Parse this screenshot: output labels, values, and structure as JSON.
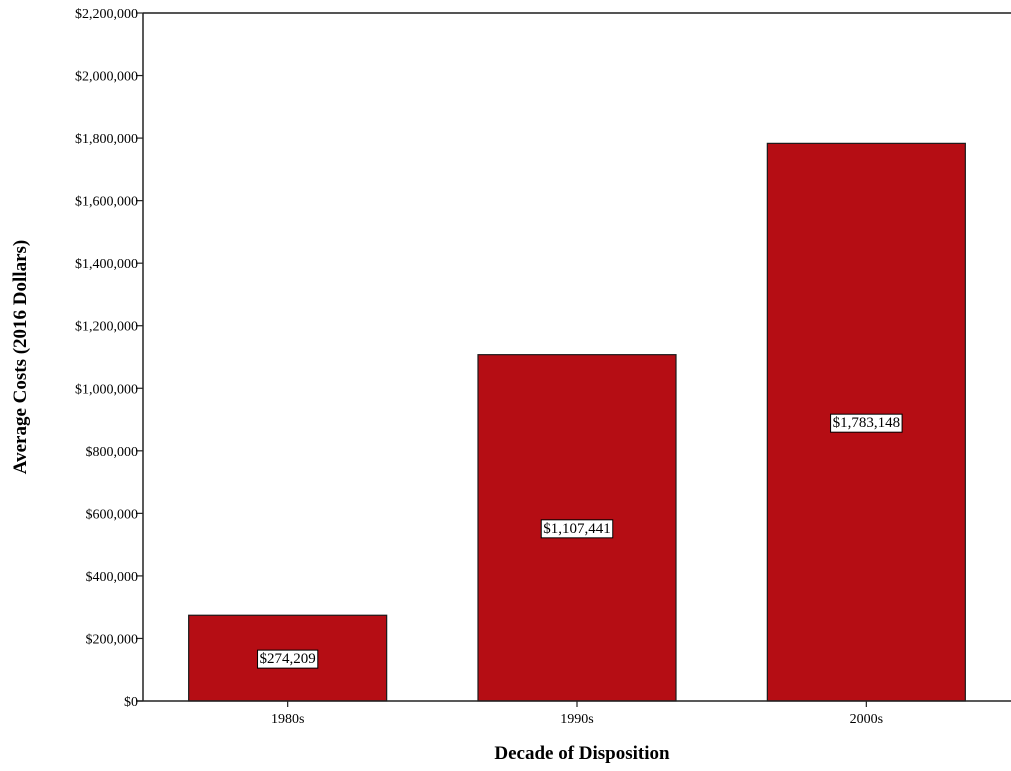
{
  "chart_data": {
    "type": "bar",
    "categories": [
      "1980s",
      "1990s",
      "2000s"
    ],
    "values": [
      274209,
      1107441,
      1783148
    ],
    "data_labels": [
      "$274,209",
      "$1,107,441",
      "$1,783,148"
    ],
    "xlabel": "Decade of Disposition",
    "ylabel": "Average Costs (2016 Dollars)",
    "ylim": [
      0,
      2200000
    ],
    "yticks": [
      0,
      200000,
      400000,
      600000,
      800000,
      1000000,
      1200000,
      1400000,
      1600000,
      1800000,
      2000000,
      2200000
    ],
    "ytick_labels": [
      "$0",
      "$200,000",
      "$400,000",
      "$600,000",
      "$800,000",
      "$1,000,000",
      "$1,200,000",
      "$1,400,000",
      "$1,600,000",
      "$1,800,000",
      "$2,000,000",
      "$2,200,000"
    ],
    "grid": false,
    "legend": false,
    "bar_color": "#b50d14",
    "bar_edge_color": "#1a1a1a"
  }
}
